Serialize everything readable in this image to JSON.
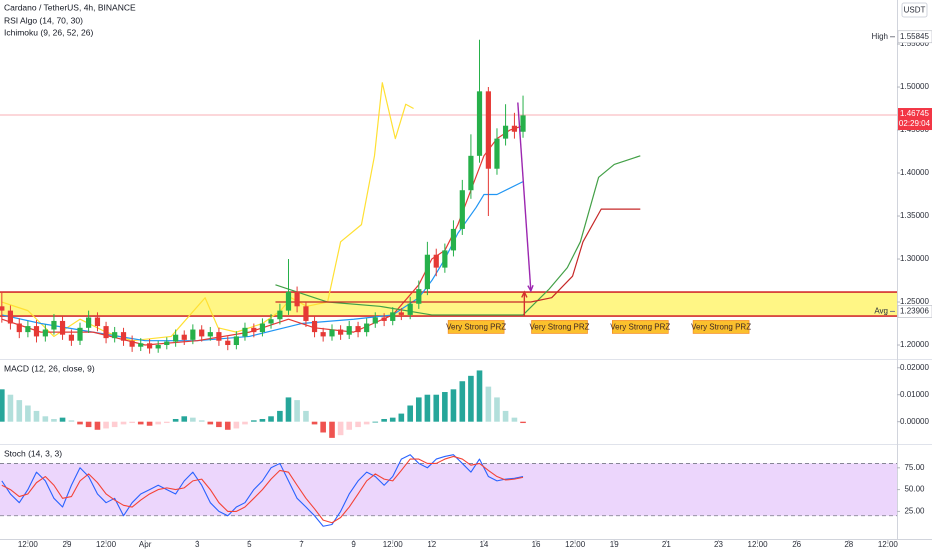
{
  "chart_data": [
    {
      "type": "candlestick",
      "title": "Cardano / TetherUS, 4h, BINANCE",
      "indicators": [
        "RSI Algo (14, 70, 30)",
        "Ichimoku (9, 26, 52, 26)"
      ],
      "currency": "USDT",
      "up_color": "#26b04a",
      "down_color": "#e53935",
      "xlim": [
        26.43,
        60.85
      ],
      "ylim": [
        1.1849,
        1.6012
      ],
      "yticks": [
        {
          "value": 1.2,
          "label": "1.20000"
        },
        {
          "value": 1.25,
          "label": "1.25000"
        },
        {
          "value": 1.3,
          "label": "1.30000"
        },
        {
          "value": 1.35,
          "label": "1.35000"
        },
        {
          "value": 1.4,
          "label": "1.40000"
        },
        {
          "value": 1.45,
          "label": "1.45000"
        },
        {
          "value": 1.5,
          "label": "1.50000"
        },
        {
          "value": 1.55,
          "label": "1.55000"
        }
      ],
      "x": [
        26.5,
        26.83,
        27.17,
        27.5,
        27.83,
        28.17,
        28.5,
        28.83,
        29.17,
        29.5,
        29.83,
        30.17,
        30.5,
        30.83,
        31.17,
        31.5,
        31.83,
        32.17,
        32.5,
        32.83,
        33.17,
        33.5,
        33.83,
        34.17,
        34.5,
        34.83,
        35.17,
        35.5,
        35.83,
        36.17,
        36.5,
        36.83,
        37.17,
        37.5,
        37.83,
        38.17,
        38.5,
        38.83,
        39.17,
        39.5,
        39.83,
        40.17,
        40.5,
        40.83,
        41.17,
        41.5,
        41.83,
        42.17,
        42.5,
        42.83,
        43.17,
        43.5,
        43.83,
        44.17,
        44.5,
        44.83,
        45.17,
        45.5,
        45.83,
        46.17,
        46.5
      ],
      "open": [
        1.245,
        1.24,
        1.225,
        1.215,
        1.222,
        1.21,
        1.218,
        1.228,
        1.212,
        1.205,
        1.22,
        1.232,
        1.222,
        1.208,
        1.215,
        1.205,
        1.198,
        1.202,
        1.196,
        1.2,
        1.204,
        1.212,
        1.206,
        1.218,
        1.21,
        1.215,
        1.205,
        1.2,
        1.21,
        1.22,
        1.215,
        1.225,
        1.23,
        1.24,
        1.262,
        1.245,
        1.228,
        1.215,
        1.21,
        1.218,
        1.212,
        1.222,
        1.215,
        1.225,
        1.232,
        1.228,
        1.238,
        1.235,
        1.248,
        1.265,
        1.305,
        1.29,
        1.31,
        1.335,
        1.38,
        1.42,
        1.495,
        1.405,
        1.44,
        1.455,
        1.448
      ],
      "high": [
        1.262,
        1.246,
        1.231,
        1.228,
        1.229,
        1.224,
        1.236,
        1.233,
        1.218,
        1.226,
        1.24,
        1.238,
        1.227,
        1.221,
        1.22,
        1.211,
        1.208,
        1.207,
        1.205,
        1.209,
        1.218,
        1.217,
        1.224,
        1.223,
        1.221,
        1.22,
        1.21,
        1.216,
        1.226,
        1.225,
        1.231,
        1.236,
        1.248,
        1.3,
        1.268,
        1.25,
        1.233,
        1.22,
        1.224,
        1.223,
        1.228,
        1.227,
        1.231,
        1.238,
        1.237,
        1.244,
        1.243,
        1.256,
        1.275,
        1.32,
        1.312,
        1.318,
        1.345,
        1.392,
        1.445,
        1.555,
        1.5,
        1.452,
        1.48,
        1.47,
        1.49
      ],
      "low": [
        1.226,
        1.218,
        1.208,
        1.209,
        1.203,
        1.204,
        1.212,
        1.206,
        1.199,
        1.2,
        1.214,
        1.216,
        1.202,
        1.203,
        1.199,
        1.192,
        1.193,
        1.19,
        1.191,
        1.195,
        1.198,
        1.2,
        1.201,
        1.204,
        1.205,
        1.199,
        1.194,
        1.195,
        1.205,
        1.209,
        1.21,
        1.219,
        1.224,
        1.235,
        1.238,
        1.221,
        1.209,
        1.204,
        1.205,
        1.206,
        1.207,
        1.209,
        1.21,
        1.22,
        1.222,
        1.223,
        1.229,
        1.23,
        1.242,
        1.258,
        1.28,
        1.284,
        1.303,
        1.328,
        1.37,
        1.412,
        1.35,
        1.398,
        1.432,
        1.44,
        1.441
      ],
      "close": [
        1.24,
        1.225,
        1.215,
        1.222,
        1.21,
        1.218,
        1.228,
        1.212,
        1.205,
        1.22,
        1.232,
        1.222,
        1.208,
        1.215,
        1.205,
        1.198,
        1.202,
        1.196,
        1.2,
        1.204,
        1.212,
        1.206,
        1.218,
        1.21,
        1.215,
        1.205,
        1.2,
        1.21,
        1.22,
        1.215,
        1.225,
        1.23,
        1.24,
        1.262,
        1.245,
        1.228,
        1.215,
        1.21,
        1.218,
        1.212,
        1.222,
        1.215,
        1.225,
        1.232,
        1.228,
        1.238,
        1.235,
        1.248,
        1.265,
        1.305,
        1.29,
        1.31,
        1.335,
        1.38,
        1.42,
        1.495,
        1.405,
        1.44,
        1.455,
        1.448,
        1.467
      ],
      "overlays": [
        {
          "color": "#ffe033",
          "x": [
            26.5,
            27.5,
            28.5,
            29.5,
            30.5,
            31.5,
            33,
            34.3,
            34.8,
            35.5,
            36.5,
            37.2,
            37.6,
            38.2,
            39,
            39.5,
            40.3,
            40.8,
            41.1,
            41.6,
            42,
            42.3
          ],
          "values": [
            1.25,
            1.24,
            1.21,
            1.23,
            1.215,
            1.205,
            1.21,
            1.255,
            1.22,
            1.215,
            1.225,
            1.24,
            1.255,
            1.245,
            1.25,
            1.32,
            1.34,
            1.42,
            1.505,
            1.44,
            1.48,
            1.475
          ]
        },
        {
          "color": "#2196f3",
          "x": [
            26.5,
            28,
            30,
            32,
            34,
            36,
            38,
            40,
            41.5,
            42.5,
            43,
            43.5,
            44,
            44.7,
            45,
            45.5,
            46.5
          ],
          "values": [
            1.235,
            1.225,
            1.215,
            1.205,
            1.205,
            1.21,
            1.225,
            1.23,
            1.235,
            1.255,
            1.275,
            1.3,
            1.33,
            1.36,
            1.375,
            1.375,
            1.39
          ]
        },
        {
          "color": "#e53935",
          "x": [
            26.5,
            28,
            30,
            32,
            34,
            36,
            37.5,
            38.5,
            40,
            41.5,
            42.5,
            43,
            43.5,
            44,
            44.5,
            45,
            45.5,
            46,
            46.5
          ],
          "values": [
            1.23,
            1.215,
            1.215,
            1.2,
            1.205,
            1.215,
            1.23,
            1.22,
            1.215,
            1.235,
            1.27,
            1.3,
            1.31,
            1.34,
            1.38,
            1.42,
            1.44,
            1.45,
            1.455
          ]
        },
        {
          "color": "#43a047",
          "x": [
            37,
            39,
            41,
            43,
            45,
            46.5,
            47.5,
            48.2,
            48.7,
            49.4,
            50,
            51
          ],
          "values": [
            1.27,
            1.25,
            1.245,
            1.235,
            1.235,
            1.235,
            1.265,
            1.29,
            1.32,
            1.395,
            1.41,
            1.42
          ]
        },
        {
          "color": "#c62828",
          "x": [
            37,
            41,
            45,
            46.8,
            47.6,
            48.4,
            48.8,
            49.5,
            51
          ],
          "values": [
            1.25,
            1.25,
            1.25,
            1.25,
            1.255,
            1.28,
            1.32,
            1.358,
            1.358
          ]
        }
      ],
      "zone": {
        "lower": 1.2337,
        "upper": 1.2616,
        "fill": "#fff35c",
        "stroke": "#d32f2f"
      },
      "price_markers": [
        {
          "text": "High",
          "value": 1.55845
        },
        {
          "text": "Avg",
          "value": 1.23906
        }
      ],
      "last_price": {
        "value": 1.46745,
        "countdown": "02:29:04",
        "color": "#f23645"
      },
      "arrows": [
        {
          "x": [
            46.3,
            46.8
          ],
          "y": [
            1.482,
            1.263
          ],
          "color": "#9c27b0"
        },
        {
          "x": [
            46.55,
            46.55
          ],
          "y": [
            1.2337,
            1.2616
          ],
          "color": "#d32f2f"
        }
      ],
      "annotations": [
        {
          "text": "Very Strong PRZ",
          "x": 44.7,
          "y": 1.221
        },
        {
          "text": "Very Strong PRZ",
          "x": 47.9,
          "y": 1.221
        },
        {
          "text": "Very Strong PRZ",
          "x": 51.0,
          "y": 1.221
        },
        {
          "text": "Very Strong PRZ",
          "x": 54.1,
          "y": 1.221
        }
      ]
    },
    {
      "type": "bar",
      "title": "MACD (12, 26, close, 9)",
      "colors": [
        "#26a69a",
        "#b2dfdb",
        "#ffcdd2",
        "#ef5350"
      ],
      "xlim": [
        26.43,
        60.85
      ],
      "ylim": [
        -0.0079,
        0.0225
      ],
      "yticks": [
        {
          "value": 0,
          "label": "0.00000"
        },
        {
          "value": 0.01,
          "label": "0.01000"
        },
        {
          "value": 0.02,
          "label": "0.02000"
        }
      ],
      "x": [
        26.5,
        26.83,
        27.17,
        27.5,
        27.83,
        28.17,
        28.5,
        28.83,
        29.17,
        29.5,
        29.83,
        30.17,
        30.5,
        30.83,
        31.17,
        31.5,
        31.83,
        32.17,
        32.5,
        32.83,
        33.17,
        33.5,
        33.83,
        34.17,
        34.5,
        34.83,
        35.17,
        35.5,
        35.83,
        36.17,
        36.5,
        36.83,
        37.17,
        37.5,
        37.83,
        38.17,
        38.5,
        38.83,
        39.17,
        39.5,
        39.83,
        40.17,
        40.5,
        40.83,
        41.17,
        41.5,
        41.83,
        42.17,
        42.5,
        42.83,
        43.17,
        43.5,
        43.83,
        44.17,
        44.5,
        44.83,
        45.17,
        45.5,
        45.83,
        46.17,
        46.5
      ],
      "values": [
        0.012,
        0.01,
        0.008,
        0.006,
        0.004,
        0.002,
        0.001,
        0.0015,
        0.0005,
        -0.001,
        -0.002,
        -0.003,
        -0.0025,
        -0.002,
        -0.001,
        -0.0005,
        -0.001,
        -0.0015,
        -0.001,
        -0.0005,
        0.001,
        0.002,
        0.0015,
        0.0005,
        -0.001,
        -0.002,
        -0.003,
        -0.0025,
        -0.001,
        0.0005,
        0.001,
        0.002,
        0.004,
        0.009,
        0.008,
        0.004,
        -0.001,
        -0.004,
        -0.006,
        -0.005,
        -0.003,
        -0.002,
        -0.001,
        0,
        0.001,
        0.0015,
        0.003,
        0.006,
        0.009,
        0.01,
        0.01,
        0.011,
        0.012,
        0.015,
        0.017,
        0.019,
        0.013,
        0.009,
        0.004,
        0.0015,
        -0.0005
      ]
    },
    {
      "type": "line",
      "title": "Stoch (14, 3, 3)",
      "xlim": [
        26.43,
        60.85
      ],
      "ylim": [
        -5.5,
        100
      ],
      "yticks": [
        {
          "value": 25,
          "label": "25.00"
        },
        {
          "value": 50,
          "label": "50.00"
        },
        {
          "value": 75,
          "label": "75.00"
        }
      ],
      "xticks": [
        {
          "value": 27.5,
          "label": "12:00"
        },
        29,
        {
          "value": 30.5,
          "label": "12:00"
        },
        {
          "value": 32,
          "label": "Apr"
        },
        {
          "value": 34,
          "label": "3"
        },
        {
          "value": 36,
          "label": "5"
        },
        {
          "value": 38,
          "label": "7"
        },
        {
          "value": 40,
          "label": "9"
        },
        {
          "value": 41.5,
          "label": "12:00"
        },
        {
          "value": 43,
          "label": "12"
        },
        {
          "value": 45,
          "label": "14"
        },
        {
          "value": 47,
          "label": "16"
        },
        {
          "value": 48.5,
          "label": "12:00"
        },
        {
          "value": 50,
          "label": "19"
        },
        {
          "value": 52,
          "label": "21"
        },
        {
          "value": 54,
          "label": "23"
        },
        {
          "value": 55.5,
          "label": "12:00"
        },
        {
          "value": 57,
          "label": "26"
        },
        {
          "value": 59,
          "label": "28"
        },
        {
          "value": 60.5,
          "label": "12:00"
        }
      ],
      "bands": [
        20,
        80
      ],
      "band_color": "#e9cffb",
      "x": [
        26.5,
        26.83,
        27.17,
        27.5,
        27.83,
        28.17,
        28.5,
        28.83,
        29.17,
        29.5,
        29.83,
        30.17,
        30.5,
        30.83,
        31.17,
        31.5,
        31.83,
        32.17,
        32.5,
        32.83,
        33.17,
        33.5,
        33.83,
        34.17,
        34.5,
        34.83,
        35.17,
        35.5,
        35.83,
        36.17,
        36.5,
        36.83,
        37.17,
        37.5,
        37.83,
        38.17,
        38.5,
        38.83,
        39.17,
        39.5,
        39.83,
        40.17,
        40.5,
        40.83,
        41.17,
        41.5,
        41.83,
        42.17,
        42.5,
        42.83,
        43.17,
        43.5,
        43.83,
        44.17,
        44.5,
        44.83,
        45.17,
        45.5,
        45.83,
        46.17,
        46.5
      ],
      "series": [
        {
          "color": "#2962ff",
          "values": [
            60,
            45,
            35,
            50,
            70,
            60,
            40,
            30,
            55,
            75,
            65,
            45,
            35,
            40,
            20,
            35,
            45,
            50,
            55,
            50,
            45,
            60,
            70,
            55,
            35,
            25,
            20,
            30,
            35,
            50,
            60,
            75,
            80,
            60,
            40,
            30,
            20,
            8,
            10,
            25,
            45,
            60,
            70,
            65,
            55,
            65,
            85,
            90,
            80,
            75,
            85,
            88,
            90,
            80,
            70,
            85,
            65,
            60,
            62,
            63,
            65
          ]
        },
        {
          "color": "#f44336",
          "values": [
            55,
            50,
            42,
            45,
            58,
            65,
            55,
            40,
            42,
            60,
            68,
            58,
            45,
            38,
            32,
            30,
            38,
            45,
            50,
            52,
            50,
            52,
            60,
            62,
            50,
            35,
            25,
            25,
            30,
            40,
            50,
            62,
            72,
            70,
            55,
            40,
            28,
            15,
            12,
            18,
            30,
            45,
            60,
            68,
            62,
            60,
            72,
            85,
            85,
            80,
            80,
            85,
            88,
            85,
            78,
            80,
            72,
            65,
            61,
            62,
            64
          ]
        }
      ]
    }
  ]
}
